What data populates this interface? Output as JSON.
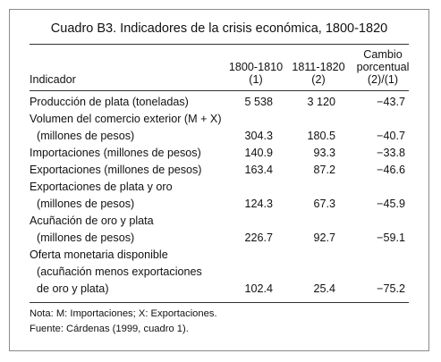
{
  "table": {
    "title": "Cuadro B3. Indicadores de la crisis económica, 1800-1820",
    "headers": {
      "indicator": "Indicador",
      "col1": [
        "1800-1810",
        "(1)"
      ],
      "col2": [
        "1811-1820",
        "(2)"
      ],
      "col3": [
        "Cambio",
        "porcentual",
        "(2)/(1)"
      ]
    },
    "rows": [
      {
        "lines": [
          "Producción de plata (toneladas)"
        ],
        "v1": "5 538",
        "v2": "3 120",
        "v3": "−43.7"
      },
      {
        "lines": [
          "Volumen del comercio exterior (M + X)",
          "  (millones de pesos)"
        ],
        "v1": "304.3",
        "v2": "180.5",
        "v3": "−40.7"
      },
      {
        "lines": [
          "Importaciones (millones de pesos)"
        ],
        "v1": "140.9",
        "v2": "93.3",
        "v3": "−33.8"
      },
      {
        "lines": [
          "Exportaciones (millones de pesos)"
        ],
        "v1": "163.4",
        "v2": "87.2",
        "v3": "−46.6"
      },
      {
        "lines": [
          "Exportaciones de plata y oro",
          "  (millones de pesos)"
        ],
        "v1": "124.3",
        "v2": "67.3",
        "v3": "−45.9"
      },
      {
        "lines": [
          "Acuñación de oro y plata",
          "  (millones de pesos)"
        ],
        "v1": "226.7",
        "v2": "92.7",
        "v3": "−59.1"
      },
      {
        "lines": [
          "Oferta monetaria disponible",
          "  (acuñación menos exportaciones",
          "  de oro y plata)"
        ],
        "v1": "102.4",
        "v2": "25.4",
        "v3": "−75.2"
      }
    ],
    "notes": [
      "Nota: M: Importaciones; X: Exportaciones.",
      "Fuente: Cárdenas (1999, cuadro 1)."
    ]
  }
}
